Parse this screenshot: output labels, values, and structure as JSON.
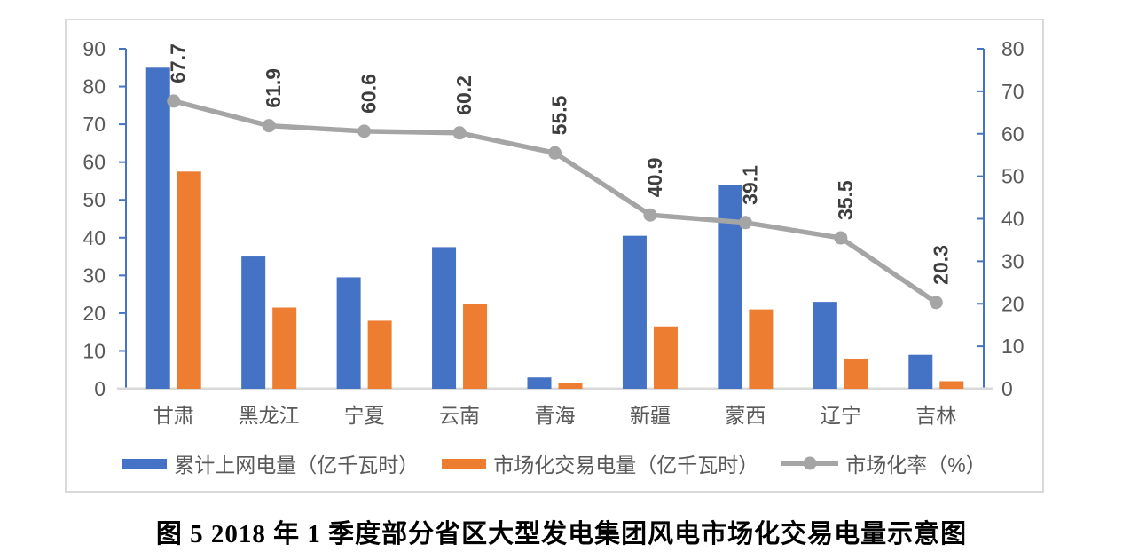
{
  "caption": "图 5 2018 年 1 季度部分省区大型发电集团风电市场化交易电量示意图",
  "colors": {
    "bar_primary": "#4472C4",
    "bar_secondary": "#ED7D31",
    "line_gray": "#A5A5A5",
    "axis_line": "#4472C4",
    "baseline": "#D9D9D9",
    "tick_label": "#595959",
    "category_label": "#595959",
    "data_label": "#3D3D3D",
    "frame_border": "#D9D9D9"
  },
  "chart_data": {
    "type": "bar",
    "subtype": "bar-line-combo",
    "categories": [
      "甘肃",
      "黑龙江",
      "宁夏",
      "云南",
      "青海",
      "新疆",
      "蒙西",
      "辽宁",
      "吉林"
    ],
    "series": [
      {
        "name": "累计上网电量（亿千瓦时）",
        "type": "bar",
        "axis": "left",
        "color": "#4472C4",
        "values": [
          85,
          35,
          29.5,
          37.5,
          3,
          40.5,
          54,
          23,
          9
        ]
      },
      {
        "name": "市场化交易电量（亿千瓦时）",
        "type": "bar",
        "axis": "left",
        "color": "#ED7D31",
        "values": [
          57.5,
          21.5,
          18,
          22.5,
          1.5,
          16.5,
          21,
          8,
          2
        ]
      },
      {
        "name": "市场化率（%）",
        "type": "line",
        "axis": "right",
        "color": "#A5A5A5",
        "values": [
          67.7,
          61.9,
          60.6,
          60.2,
          55.5,
          40.9,
          39.1,
          35.5,
          20.3
        ],
        "data_labels": [
          "67.7",
          "61.9",
          "60.6",
          "60.2",
          "55.5",
          "40.9",
          "39.1",
          "35.5",
          "20.3"
        ]
      }
    ],
    "left_axis": {
      "min": 0,
      "max": 90,
      "step": 10,
      "tick_labels": [
        "0",
        "10",
        "20",
        "30",
        "40",
        "50",
        "60",
        "70",
        "80",
        "90"
      ]
    },
    "right_axis": {
      "min": 0,
      "max": 80,
      "step": 10,
      "tick_labels": [
        "0",
        "10",
        "20",
        "30",
        "40",
        "50",
        "60",
        "70",
        "80"
      ]
    },
    "grid": false,
    "legend_position": "bottom"
  }
}
